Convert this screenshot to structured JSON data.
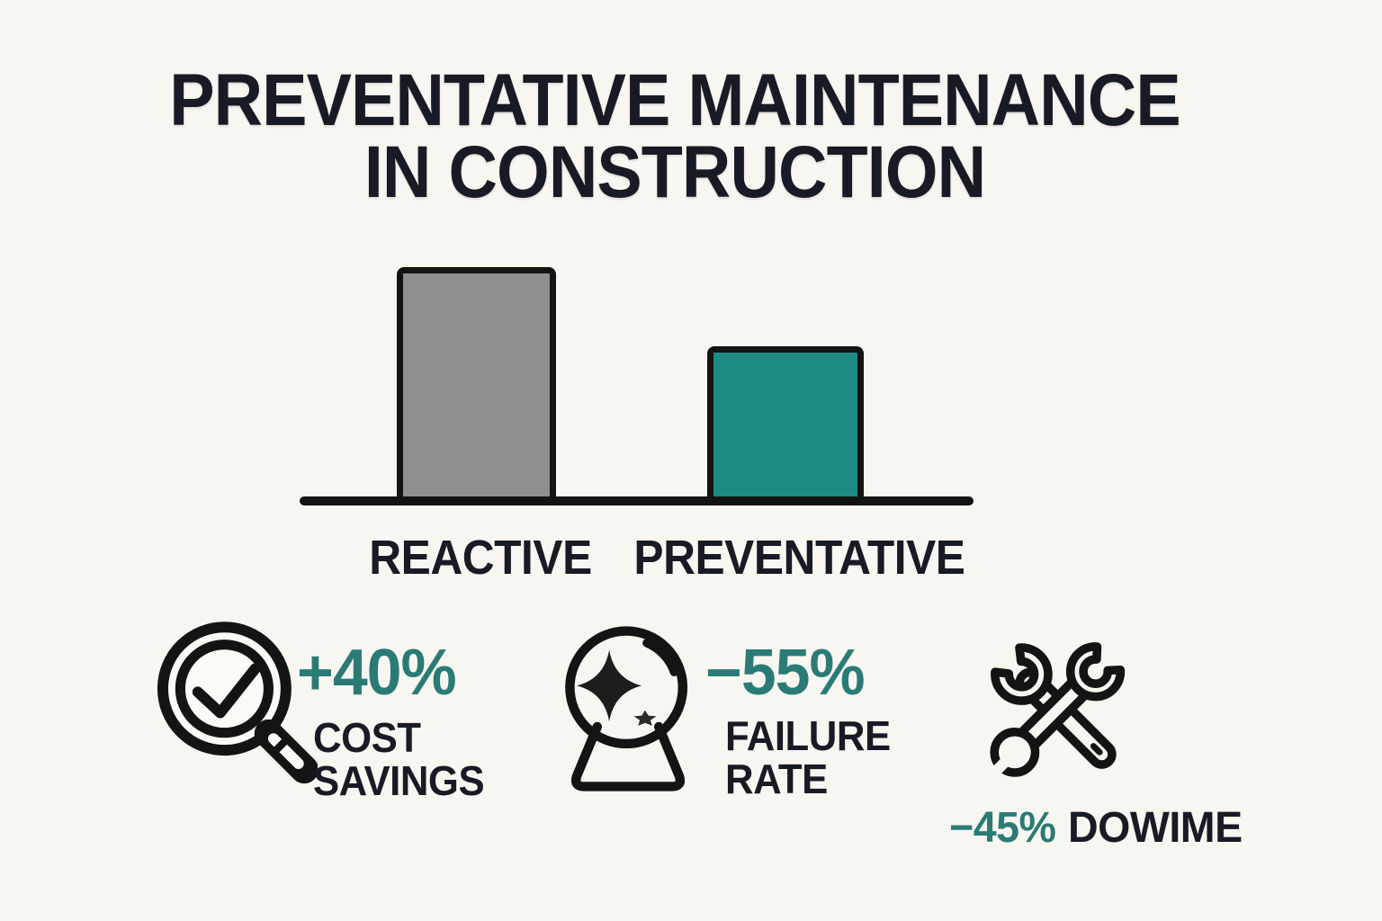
{
  "title": {
    "line1": "PREVENTATIVE MAINTENANCE",
    "line2": "IN CONSTRUCTION"
  },
  "chart_data": {
    "type": "bar",
    "categories": [
      "REACTIVE",
      "PREVENTATIVE"
    ],
    "values": [
      100,
      66
    ],
    "value_unit": "relative bar height, percent of tallest bar (no numeric axis shown)",
    "series_colors": [
      "#8f8f8f",
      "#1e8a84"
    ],
    "bar_border_color": "#131313",
    "axis_color": "#131313",
    "title": "PREVENTATIVE MAINTENANCE IN CONSTRUCTION",
    "xlabel": "",
    "ylabel": "",
    "grid": false,
    "legend": false,
    "yticks": false
  },
  "stats": [
    {
      "icon": "magnifier-check-icon",
      "value": "+40%",
      "label_lines": "COST\nSAVINGS"
    },
    {
      "icon": "crystal-ball-icon",
      "value": "−55%",
      "label_lines": "FAILURE\nRATE"
    },
    {
      "icon": "crossed-wrenches-icon",
      "value": "−45%",
      "label_lines": "DOWIME"
    }
  ],
  "colors": {
    "background": "#f8f6f0",
    "dark_text": "#181b25",
    "accent_teal_text": "#2a7b76",
    "icon_stroke": "#141414",
    "icon_fill_light": "#fbfaf6"
  }
}
